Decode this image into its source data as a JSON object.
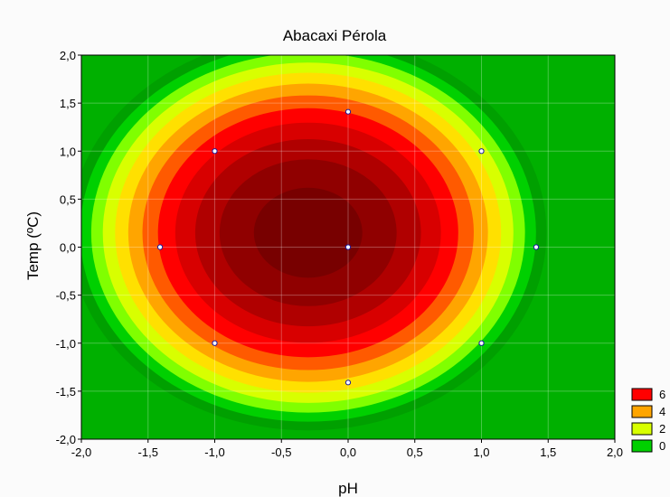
{
  "chart_data": {
    "type": "contour",
    "title": "Abacaxi Pérola",
    "xlabel": "pH",
    "ylabel": "Temp (ºC)",
    "xlim": [
      -2.0,
      2.0
    ],
    "ylim": [
      -2.0,
      2.0
    ],
    "x_ticks": [
      "-2,0",
      "-1,5",
      "-1,0",
      "-0,5",
      "0,0",
      "0,5",
      "1,0",
      "1,5",
      "2,0"
    ],
    "y_ticks": [
      "2,0",
      "1,5",
      "1,0",
      "0,5",
      "0,0",
      "-0,5",
      "-1,0",
      "-1,5",
      "-2,0"
    ],
    "grid": true,
    "legend_position": "bottom-right",
    "legend": [
      {
        "label": "6",
        "color": "#ff0000"
      },
      {
        "label": "4",
        "color": "#ffa500"
      },
      {
        "label": "2",
        "color": "#d8ff00"
      },
      {
        "label": "0",
        "color": "#00d000"
      }
    ],
    "contour_bands": [
      {
        "level": 10,
        "color": "#780000"
      },
      {
        "level": 9,
        "color": "#900000"
      },
      {
        "level": 8,
        "color": "#b00000"
      },
      {
        "level": 7,
        "color": "#d80000"
      },
      {
        "level": 6,
        "color": "#ff0000"
      },
      {
        "level": 5,
        "color": "#ff5a00"
      },
      {
        "level": 4,
        "color": "#ffa500"
      },
      {
        "level": 3,
        "color": "#ffe000"
      },
      {
        "level": 2,
        "color": "#d8ff00"
      },
      {
        "level": 1,
        "color": "#80ff00"
      },
      {
        "level": 0,
        "color": "#00d000"
      },
      {
        "level": -1,
        "color": "#00a000"
      }
    ],
    "design_points": [
      {
        "x": -1.0,
        "y": -1.0
      },
      {
        "x": 1.0,
        "y": -1.0
      },
      {
        "x": -1.0,
        "y": 1.0
      },
      {
        "x": 1.0,
        "y": 1.0
      },
      {
        "x": -1.41,
        "y": 0.0
      },
      {
        "x": 1.41,
        "y": 0.0
      },
      {
        "x": 0.0,
        "y": -1.41
      },
      {
        "x": 0.0,
        "y": 1.41
      },
      {
        "x": 0.0,
        "y": 0.0
      }
    ]
  }
}
